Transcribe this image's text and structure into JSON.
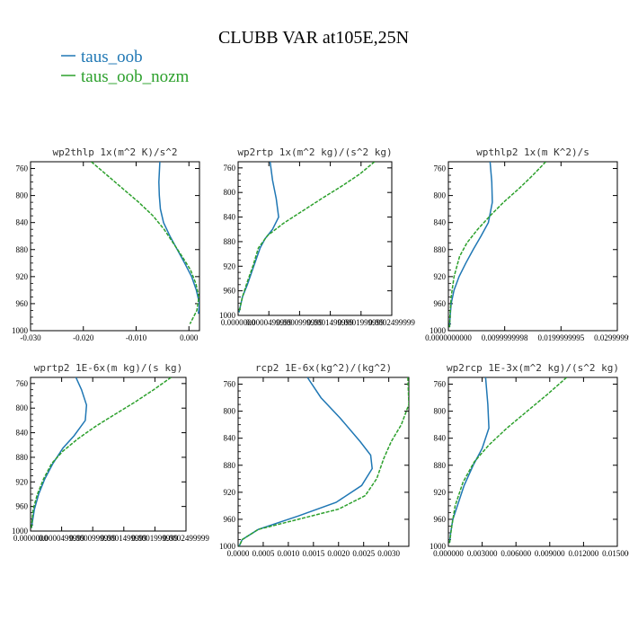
{
  "figure": {
    "title": "CLUBB VAR at105E,25N",
    "legend": [
      {
        "name": "taus_oob",
        "color": "#1f77b4"
      },
      {
        "name": "taus_oob_nozm",
        "color": "#2ca02c"
      }
    ]
  },
  "chart_data": [
    {
      "type": "line",
      "title": "wp2thlp   1x(m^2 K)/s^2",
      "xlim": [
        -0.03,
        0.002
      ],
      "ylim": [
        1000,
        750
      ],
      "xticks": [
        -0.03,
        -0.02,
        -0.01,
        0.0
      ],
      "xtick_labels": [
        "-0.030",
        "-0.020",
        "-0.010",
        "0.000"
      ],
      "yticks": [
        760,
        800,
        840,
        880,
        920,
        960,
        1000
      ],
      "series": [
        {
          "name": "taus_oob",
          "color": "#1f77b4",
          "dashed": false,
          "x": [
            -0.0055,
            -0.0057,
            -0.0056,
            -0.0054,
            -0.0048,
            -0.0036,
            -0.0022,
            -0.0008,
            0.0005,
            0.0014,
            0.002,
            0.0018
          ],
          "y": [
            750,
            780,
            800,
            820,
            840,
            860,
            880,
            900,
            920,
            940,
            960,
            975
          ]
        },
        {
          "name": "taus_oob_nozm",
          "color": "#2ca02c",
          "dashed": true,
          "x": [
            -0.0185,
            -0.0155,
            -0.0125,
            -0.0095,
            -0.0068,
            -0.0047,
            -0.003,
            -0.0013,
            0.0003,
            0.0013,
            0.0019,
            0.0015,
            0.0002
          ],
          "y": [
            750,
            770,
            790,
            810,
            830,
            850,
            870,
            890,
            910,
            930,
            950,
            970,
            990
          ]
        }
      ]
    },
    {
      "type": "line",
      "title": "wp2rtp   1x(m^2 kg)/(s^2 kg)",
      "xlim": [
        0.0,
        0.00025
      ],
      "ylim": [
        1000,
        750
      ],
      "xticks": [
        0.0,
        5e-05,
        0.0001,
        0.00015,
        0.0002,
        0.00025
      ],
      "xtick_labels": [
        "0.0000000",
        "0.0000499999",
        "0.0000999999",
        "0.0001499999",
        "0.0001999999",
        "0.0002499999"
      ],
      "yticks": [
        760,
        800,
        840,
        880,
        920,
        960,
        1000
      ],
      "series": [
        {
          "name": "taus_oob",
          "color": "#1f77b4",
          "dashed": false,
          "x": [
            5.2e-05,
            5.6e-05,
            6.2e-05,
            6.6e-05,
            5.6e-05,
            4.4e-05,
            3.6e-05,
            2.9e-05,
            2.2e-05,
            1.5e-05,
            7e-06,
            1.5e-06
          ],
          "y": [
            750,
            780,
            810,
            840,
            860,
            875,
            890,
            910,
            930,
            950,
            970,
            995
          ]
        },
        {
          "name": "taus_oob_nozm",
          "color": "#2ca02c",
          "dashed": true,
          "x": [
            0.000222,
            0.000198,
            0.000168,
            0.000136,
            0.000105,
            7.4e-05,
            4.8e-05,
            3.3e-05,
            2.4e-05,
            1.5e-05,
            7e-06,
            1.5e-06
          ],
          "y": [
            750,
            770,
            790,
            810,
            830,
            850,
            870,
            890,
            920,
            945,
            970,
            995
          ]
        }
      ]
    },
    {
      "type": "line",
      "title": "wpthlp2   1x(m K^2)/s",
      "xlim": [
        0.0,
        0.03
      ],
      "ylim": [
        1000,
        750
      ],
      "xticks": [
        0.0,
        0.01,
        0.02,
        0.03
      ],
      "xtick_labels": [
        "0.0000000000",
        "0.0099999998",
        "0.0199999995",
        "0.0299999993"
      ],
      "yticks": [
        760,
        800,
        840,
        880,
        920,
        960,
        1000
      ],
      "series": [
        {
          "name": "taus_oob",
          "color": "#1f77b4",
          "dashed": false,
          "x": [
            0.0074,
            0.0077,
            0.0078,
            0.0071,
            0.0058,
            0.0044,
            0.0031,
            0.0019,
            0.001,
            0.0005,
            0.0003,
            0.0002
          ],
          "y": [
            750,
            780,
            810,
            840,
            860,
            880,
            900,
            920,
            940,
            960,
            980,
            995
          ]
        },
        {
          "name": "taus_oob_nozm",
          "color": "#2ca02c",
          "dashed": true,
          "x": [
            0.0173,
            0.015,
            0.0125,
            0.0098,
            0.0074,
            0.0052,
            0.0033,
            0.002,
            0.001,
            0.0005,
            0.0003,
            0.0002
          ],
          "y": [
            750,
            770,
            790,
            810,
            830,
            850,
            870,
            890,
            920,
            950,
            975,
            995
          ]
        }
      ]
    },
    {
      "type": "line",
      "title": "wprtp2   1E-6x(m kg)/(s kg)",
      "xlim": [
        0.0,
        0.00025
      ],
      "ylim": [
        1000,
        750
      ],
      "xticks": [
        0.0,
        5e-05,
        0.0001,
        0.00015,
        0.0002,
        0.00025
      ],
      "xtick_labels": [
        "0.0000000",
        "0.0000499999",
        "0.0000999999",
        "0.0001499999",
        "0.0001999999",
        "0.0002499999"
      ],
      "yticks": [
        760,
        800,
        840,
        880,
        920,
        960,
        1000
      ],
      "series": [
        {
          "name": "taus_oob",
          "color": "#1f77b4",
          "dashed": false,
          "x": [
            7.3e-05,
            8.2e-05,
            9e-05,
            8.8e-05,
            7e-05,
            5.2e-05,
            3.6e-05,
            2.3e-05,
            1.3e-05,
            6e-06,
            1.5e-06
          ],
          "y": [
            750,
            770,
            795,
            820,
            845,
            865,
            890,
            915,
            940,
            965,
            995
          ]
        },
        {
          "name": "taus_oob_nozm",
          "color": "#2ca02c",
          "dashed": true,
          "x": [
            0.000226,
            0.000198,
            0.000168,
            0.000136,
            0.000104,
            7.6e-05,
            5.2e-05,
            3.4e-05,
            2.1e-05,
            1.1e-05,
            4e-06,
            1.5e-06
          ],
          "y": [
            750,
            770,
            790,
            810,
            830,
            850,
            870,
            890,
            915,
            940,
            965,
            995
          ]
        }
      ]
    },
    {
      "type": "line",
      "title": "rcp2   1E-6x(kg^2)/(kg^2)",
      "xlim": [
        0.0,
        0.0034
      ],
      "ylim": [
        1000,
        750
      ],
      "xticks": [
        0.0,
        0.0005,
        0.001,
        0.0015,
        0.002,
        0.0025,
        0.003
      ],
      "xtick_labels": [
        "0.0000",
        "0.0005",
        "0.0010",
        "0.0015",
        "0.0020",
        "0.0025",
        "0.0030"
      ],
      "yticks": [
        760,
        800,
        840,
        880,
        920,
        960,
        1000
      ],
      "series": [
        {
          "name": "taus_oob",
          "color": "#1f77b4",
          "dashed": false,
          "x": [
            0.00138,
            0.00165,
            0.00203,
            0.00243,
            0.00264,
            0.00267,
            0.00246,
            0.00195,
            0.0012,
            0.0004,
            8e-05,
            2e-05
          ],
          "y": [
            750,
            780,
            810,
            845,
            865,
            885,
            910,
            935,
            955,
            975,
            990,
            1000
          ]
        },
        {
          "name": "taus_oob_nozm",
          "color": "#2ca02c",
          "dashed": true,
          "x": [
            0.00338,
            0.0034,
            0.00325,
            0.00305,
            0.0029,
            0.00276,
            0.00253,
            0.002,
            0.0012,
            0.0004,
            8e-05,
            2e-05
          ],
          "y": [
            750,
            790,
            820,
            845,
            870,
            900,
            925,
            945,
            960,
            975,
            990,
            1000
          ]
        }
      ]
    },
    {
      "type": "line",
      "title": "wp2rcp   1E-3x(m^2 kg)/(s^2 kg)",
      "xlim": [
        0.0,
        0.015
      ],
      "ylim": [
        1000,
        750
      ],
      "xticks": [
        0.0,
        0.003,
        0.006,
        0.009,
        0.012,
        0.015
      ],
      "xtick_labels": [
        "0.000000",
        "0.003000",
        "0.006000",
        "0.009000",
        "0.012000",
        "0.015000"
      ],
      "yticks": [
        760,
        800,
        840,
        880,
        920,
        960,
        1000
      ],
      "series": [
        {
          "name": "taus_oob",
          "color": "#1f77b4",
          "dashed": false,
          "x": [
            0.0033,
            0.0035,
            0.0036,
            0.003,
            0.0022,
            0.0014,
            0.0008,
            0.0004,
            0.0002,
            0.0001
          ],
          "y": [
            750,
            790,
            825,
            855,
            880,
            910,
            940,
            960,
            980,
            995
          ]
        },
        {
          "name": "taus_oob_nozm",
          "color": "#2ca02c",
          "dashed": true,
          "x": [
            0.0105,
            0.0088,
            0.007,
            0.0052,
            0.0036,
            0.0023,
            0.0013,
            0.0006,
            0.0003,
            0.0001
          ],
          "y": [
            750,
            775,
            800,
            825,
            850,
            875,
            905,
            940,
            970,
            995
          ]
        }
      ]
    }
  ]
}
